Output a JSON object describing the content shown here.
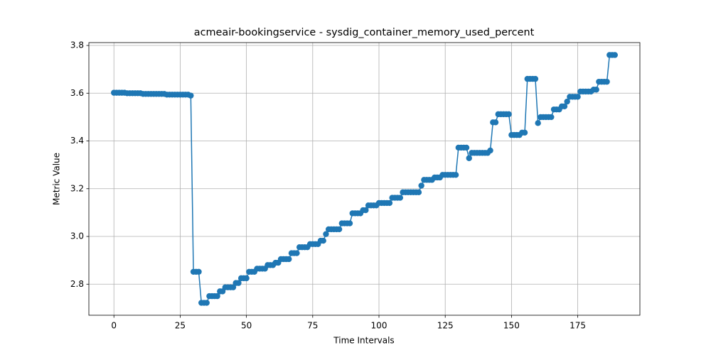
{
  "chart_data": {
    "type": "line",
    "title": "acmeair-bookingservice - sysdig_container_memory_used_percent",
    "x_label": "Time Intervals",
    "y_label": "Metric Value",
    "color": "#1f77b4",
    "grid": true,
    "xlim": [
      -9.45,
      198.45
    ],
    "ylim": [
      2.67,
      3.812
    ],
    "xticks": [
      0,
      25,
      50,
      75,
      100,
      125,
      150,
      175
    ],
    "yticks": [
      2.8,
      {
        "value": 3,
        "label": "3.0"
      },
      3.2,
      3.4,
      3.6,
      3.8
    ],
    "x": [
      0,
      1,
      2,
      3,
      4,
      5,
      6,
      7,
      8,
      9,
      10,
      11,
      12,
      13,
      14,
      15,
      16,
      17,
      18,
      19,
      20,
      21,
      22,
      23,
      24,
      25,
      26,
      27,
      28,
      29,
      30,
      31,
      32,
      33,
      34,
      35,
      36,
      37,
      38,
      39,
      40,
      41,
      42,
      43,
      44,
      45,
      46,
      47,
      48,
      49,
      50,
      51,
      52,
      53,
      54,
      55,
      56,
      57,
      58,
      59,
      60,
      61,
      62,
      63,
      64,
      65,
      66,
      67,
      68,
      69,
      70,
      71,
      72,
      73,
      74,
      75,
      76,
      77,
      78,
      79,
      80,
      81,
      82,
      83,
      84,
      85,
      86,
      87,
      88,
      89,
      90,
      91,
      92,
      93,
      94,
      95,
      96,
      97,
      98,
      99,
      100,
      101,
      102,
      103,
      104,
      105,
      106,
      107,
      108,
      109,
      110,
      111,
      112,
      113,
      114,
      115,
      116,
      117,
      118,
      119,
      120,
      121,
      122,
      123,
      124,
      125,
      126,
      127,
      128,
      129,
      130,
      131,
      132,
      133,
      134,
      135,
      136,
      137,
      138,
      139,
      140,
      141,
      142,
      143,
      144,
      145,
      146,
      147,
      148,
      149,
      150,
      151,
      152,
      153,
      154,
      155,
      156,
      157,
      158,
      159,
      160,
      161,
      162,
      163,
      164,
      165,
      166,
      167,
      168,
      169,
      170,
      171,
      172,
      173,
      174,
      175,
      176,
      177,
      178,
      179,
      180,
      181,
      182,
      183,
      184,
      185,
      186,
      187,
      188,
      189
    ],
    "values": [
      3.602,
      3.602,
      3.602,
      3.602,
      3.602,
      3.6,
      3.6,
      3.6,
      3.6,
      3.6,
      3.6,
      3.597,
      3.597,
      3.597,
      3.597,
      3.597,
      3.597,
      3.597,
      3.597,
      3.597,
      3.594,
      3.594,
      3.594,
      3.594,
      3.594,
      3.594,
      3.594,
      3.594,
      3.594,
      3.59,
      2.852,
      2.852,
      2.852,
      2.722,
      2.722,
      2.722,
      2.75,
      2.75,
      2.75,
      2.75,
      2.77,
      2.77,
      2.787,
      2.787,
      2.787,
      2.787,
      2.805,
      2.805,
      2.825,
      2.825,
      2.825,
      2.852,
      2.852,
      2.852,
      2.865,
      2.865,
      2.865,
      2.865,
      2.88,
      2.88,
      2.88,
      2.89,
      2.89,
      2.905,
      2.905,
      2.905,
      2.905,
      2.93,
      2.93,
      2.93,
      2.955,
      2.955,
      2.955,
      2.955,
      2.968,
      2.968,
      2.968,
      2.968,
      2.982,
      2.982,
      3.01,
      3.03,
      3.03,
      3.03,
      3.03,
      3.03,
      3.055,
      3.055,
      3.055,
      3.055,
      3.097,
      3.097,
      3.097,
      3.097,
      3.11,
      3.11,
      3.13,
      3.13,
      3.13,
      3.13,
      3.14,
      3.14,
      3.14,
      3.14,
      3.14,
      3.162,
      3.162,
      3.162,
      3.162,
      3.185,
      3.185,
      3.185,
      3.185,
      3.185,
      3.185,
      3.185,
      3.213,
      3.237,
      3.237,
      3.237,
      3.237,
      3.247,
      3.247,
      3.247,
      3.258,
      3.258,
      3.258,
      3.258,
      3.258,
      3.258,
      3.372,
      3.372,
      3.372,
      3.372,
      3.328,
      3.35,
      3.35,
      3.35,
      3.35,
      3.35,
      3.35,
      3.35,
      3.36,
      3.478,
      3.478,
      3.512,
      3.512,
      3.512,
      3.512,
      3.512,
      3.425,
      3.425,
      3.425,
      3.425,
      3.435,
      3.435,
      3.66,
      3.66,
      3.66,
      3.66,
      3.475,
      3.5,
      3.5,
      3.5,
      3.5,
      3.5,
      3.532,
      3.532,
      3.532,
      3.545,
      3.545,
      3.565,
      3.585,
      3.585,
      3.585,
      3.585,
      3.607,
      3.607,
      3.607,
      3.607,
      3.607,
      3.615,
      3.615,
      3.648,
      3.648,
      3.648,
      3.648,
      3.76,
      3.76,
      3.76
    ]
  }
}
